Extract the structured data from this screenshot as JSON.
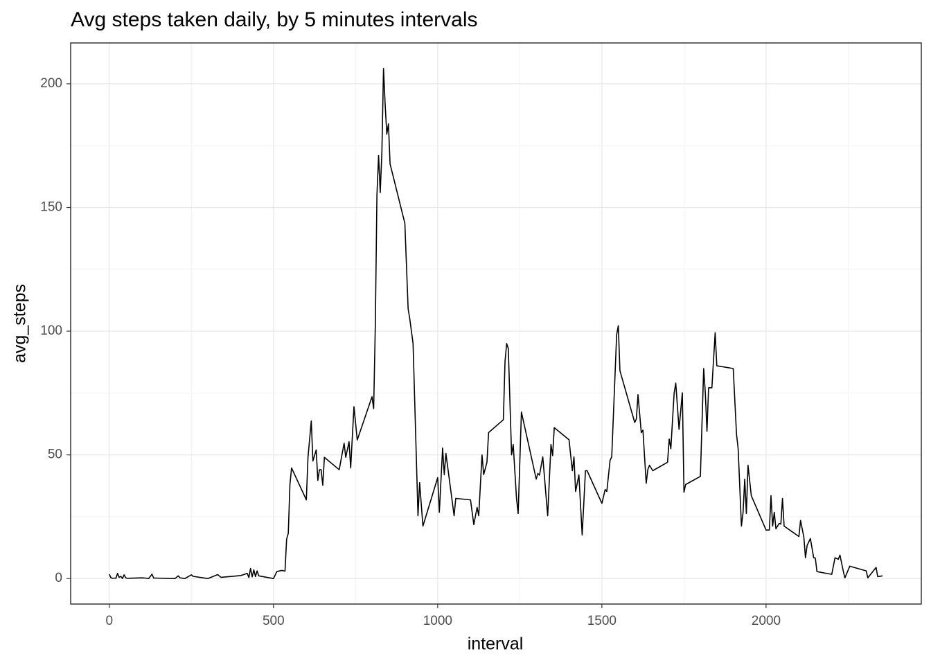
{
  "chart_data": {
    "type": "line",
    "title": "Avg steps taken daily, by 5 minutes intervals",
    "x_label": "interval",
    "y_label": "avg_steps",
    "color": "#000000",
    "grid": true,
    "minor_grid": true,
    "xlim": [
      -117.75,
      2472.75
    ],
    "ylim": [
      -10.3,
      216.5
    ],
    "xticks": [
      0,
      500,
      1000,
      1500,
      2000
    ],
    "yticks": [
      0,
      50,
      100,
      150,
      200
    ],
    "x": [
      0,
      5,
      10,
      15,
      20,
      25,
      30,
      35,
      40,
      45,
      50,
      55,
      100,
      110,
      120,
      130,
      135,
      140,
      200,
      210,
      215,
      230,
      250,
      255,
      300,
      330,
      340,
      400,
      420,
      425,
      430,
      435,
      440,
      445,
      450,
      455,
      500,
      510,
      525,
      535,
      540,
      545,
      550,
      555,
      600,
      605,
      615,
      620,
      630,
      635,
      640,
      645,
      650,
      655,
      700,
      715,
      720,
      730,
      735,
      745,
      755,
      800,
      805,
      810,
      815,
      820,
      825,
      830,
      835,
      840,
      845,
      850,
      855,
      900,
      910,
      915,
      925,
      940,
      945,
      955,
      1000,
      1005,
      1015,
      1020,
      1025,
      1050,
      1055,
      1100,
      1110,
      1120,
      1125,
      1135,
      1140,
      1150,
      1155,
      1200,
      1205,
      1210,
      1215,
      1225,
      1230,
      1240,
      1245,
      1255,
      1300,
      1305,
      1310,
      1320,
      1335,
      1345,
      1350,
      1355,
      1400,
      1410,
      1415,
      1420,
      1430,
      1440,
      1450,
      1455,
      1500,
      1510,
      1515,
      1525,
      1530,
      1545,
      1550,
      1555,
      1600,
      1605,
      1610,
      1620,
      1625,
      1635,
      1640,
      1645,
      1655,
      1700,
      1705,
      1710,
      1720,
      1725,
      1735,
      1745,
      1750,
      1755,
      1800,
      1810,
      1815,
      1820,
      1825,
      1835,
      1845,
      1850,
      1900,
      1910,
      1915,
      1925,
      1930,
      1935,
      1940,
      1945,
      1955,
      2000,
      2010,
      2015,
      2020,
      2025,
      2030,
      2040,
      2045,
      2050,
      2055,
      2100,
      2105,
      2115,
      2120,
      2125,
      2135,
      2145,
      2150,
      2155,
      2200,
      2210,
      2220,
      2225,
      2235,
      2240,
      2255,
      2305,
      2310,
      2335,
      2340,
      2355
    ],
    "values": [
      1.7,
      0.3,
      0.1,
      0.2,
      0.1,
      2.1,
      0.5,
      0.9,
      0,
      1.5,
      0.3,
      0.1,
      0.3,
      0.2,
      0,
      1.8,
      0.2,
      0.2,
      0,
      1.1,
      0.3,
      0,
      1.5,
      0.9,
      0,
      1.6,
      0.5,
      1.2,
      2.1,
      0.4,
      4.1,
      0.7,
      3.5,
      0.8,
      3.1,
      1.1,
      0,
      2.8,
      3.3,
      3,
      16,
      18.3,
      38,
      44.7,
      31.8,
      49,
      63.7,
      47.5,
      52,
      39.7,
      44,
      44,
      37.7,
      49,
      44,
      54.7,
      49,
      55.3,
      44.7,
      69.5,
      56,
      73.5,
      68.7,
      102,
      155,
      171,
      156,
      172,
      206.2,
      191.6,
      179.6,
      183.8,
      167.6,
      143.6,
      109,
      105,
      95,
      25.4,
      38.8,
      21.2,
      40.8,
      26.8,
      52.8,
      42,
      50.6,
      25.4,
      32.4,
      31.8,
      21.8,
      28.8,
      25.4,
      50,
      42,
      47,
      59,
      64.2,
      87.7,
      95,
      93,
      50,
      54.2,
      32.4,
      26.3,
      67.3,
      40.2,
      42.5,
      41.8,
      49.2,
      25.4,
      54.2,
      49.7,
      61,
      56.1,
      43.6,
      49.2,
      35.2,
      41.9,
      17.6,
      43.6,
      43.6,
      30.4,
      36,
      35.2,
      47.8,
      49.2,
      98.6,
      102.2,
      84,
      63.1,
      64.5,
      74.3,
      59,
      60,
      38.5,
      44.1,
      45.8,
      43.6,
      47,
      56.4,
      52.5,
      74.9,
      79,
      60.3,
      75.1,
      34.9,
      38,
      41.3,
      84.9,
      75.1,
      59.5,
      77.1,
      77.1,
      99.4,
      86,
      84.9,
      58.4,
      52.5,
      21.2,
      26.8,
      40.2,
      26.3,
      45.8,
      33.5,
      19.6,
      19.6,
      33.5,
      21.2,
      26.8,
      20.1,
      22.3,
      22,
      32.4,
      21.2,
      17,
      23.5,
      16.8,
      8.4,
      13.4,
      16.2,
      8.4,
      8.3,
      2.8,
      1.7,
      8.4,
      7.8,
      9.5,
      3.1,
      0.3,
      5,
      3.1,
      0.3,
      4.5,
      0.8,
      1.1
    ]
  }
}
